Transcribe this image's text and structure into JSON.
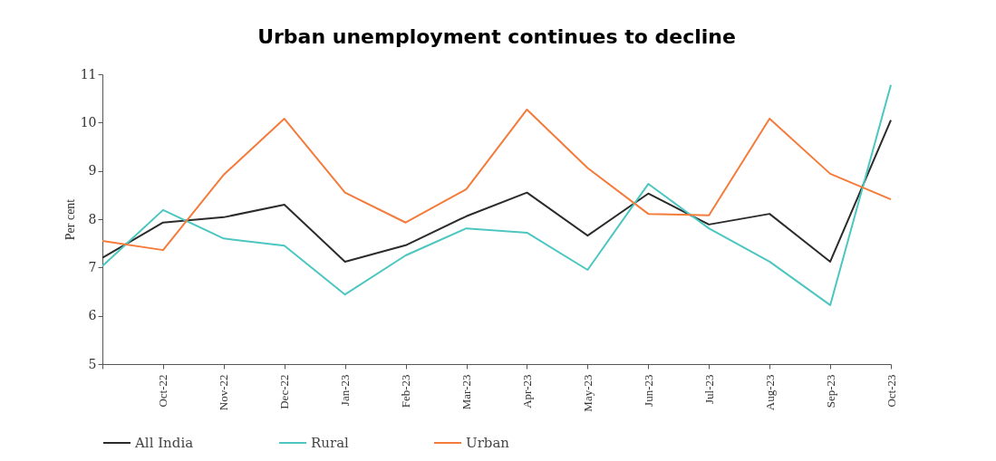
{
  "chart_data": {
    "type": "line",
    "title": "Urban unemployment continues to decline",
    "ylabel": "Per cent",
    "categories": [
      null,
      "Oct-22",
      "Nov-22",
      "Dec-22",
      "Jan-23",
      "Feb-23",
      "Mar-23",
      "Apr-23",
      "May-23",
      "Jun-23",
      "Jul-23",
      "Aug-23",
      "Sep-23",
      "Oct-23"
    ],
    "series": [
      {
        "name": "All India",
        "color": "#2b2b2b",
        "values": [
          7.2,
          7.93,
          8.04,
          8.3,
          7.12,
          7.46,
          8.06,
          8.55,
          7.66,
          8.53,
          7.89,
          8.11,
          7.12,
          10.05
        ]
      },
      {
        "name": "Rural",
        "color": "#4cc6c0",
        "values": [
          7.03,
          8.19,
          7.6,
          7.45,
          6.44,
          7.25,
          7.81,
          7.72,
          6.95,
          8.73,
          7.81,
          7.12,
          6.22,
          10.78
        ]
      },
      {
        "name": "Urban",
        "color": "#f47b3a",
        "values": [
          7.55,
          7.36,
          8.92,
          10.08,
          8.55,
          7.93,
          8.62,
          10.27,
          9.06,
          8.11,
          8.08,
          10.08,
          8.94,
          8.41
        ]
      }
    ],
    "ylim": [
      5,
      11
    ],
    "yticks": [
      5,
      6,
      7,
      8,
      9,
      10,
      11
    ],
    "grid": false,
    "legend": "bottom",
    "marker": "none",
    "line_style": "solid"
  }
}
